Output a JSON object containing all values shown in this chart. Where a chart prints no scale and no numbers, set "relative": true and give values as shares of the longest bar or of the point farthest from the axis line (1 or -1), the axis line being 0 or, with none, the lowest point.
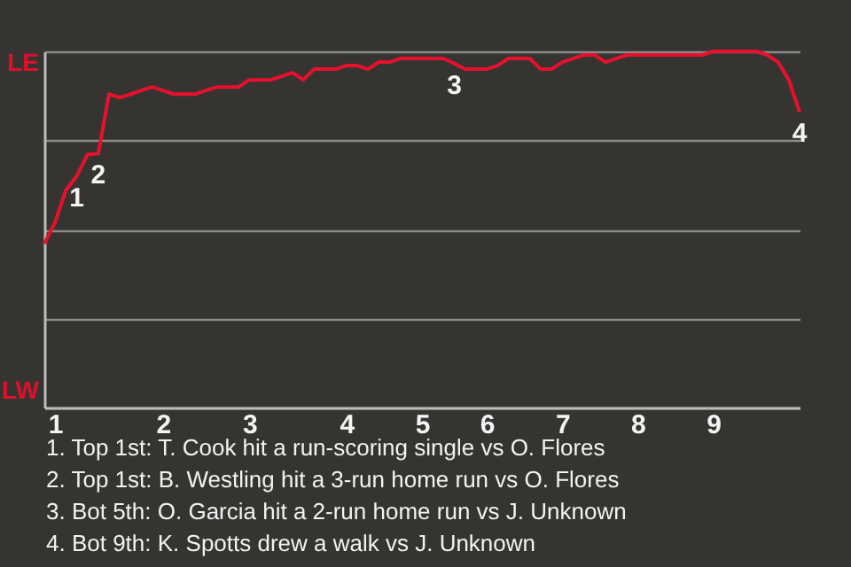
{
  "chart_data": {
    "type": "line",
    "relative": true,
    "categories": [
      null,
      "1",
      null,
      null,
      null,
      null,
      null,
      null,
      null,
      null,
      null,
      "2",
      null,
      null,
      null,
      null,
      null,
      null,
      null,
      "3",
      null,
      null,
      null,
      null,
      null,
      null,
      null,
      null,
      "4",
      null,
      null,
      null,
      null,
      null,
      null,
      "5",
      null,
      null,
      null,
      null,
      null,
      "6",
      null,
      null,
      null,
      null,
      null,
      null,
      "7",
      null,
      null,
      null,
      null,
      null,
      null,
      "8",
      null,
      null,
      null,
      null,
      null,
      null,
      "9",
      null,
      null,
      null,
      null,
      null,
      null,
      null,
      null
    ],
    "values": [
      0.46,
      0.52,
      0.61,
      0.65,
      0.71,
      0.713,
      0.88,
      0.87,
      0.88,
      0.89,
      0.9,
      0.89,
      0.88,
      0.88,
      0.88,
      0.89,
      0.9,
      0.9,
      0.9,
      0.92,
      0.92,
      0.92,
      0.93,
      0.94,
      0.92,
      0.95,
      0.95,
      0.95,
      0.96,
      0.96,
      0.95,
      0.97,
      0.97,
      0.98,
      0.98,
      0.98,
      0.98,
      0.98,
      0.966,
      0.95,
      0.95,
      0.95,
      0.96,
      0.98,
      0.98,
      0.98,
      0.95,
      0.95,
      0.97,
      0.98,
      0.99,
      0.99,
      0.97,
      0.98,
      0.99,
      0.99,
      0.99,
      0.99,
      0.99,
      0.99,
      0.99,
      0.99,
      1.0,
      1.0,
      1.0,
      1.0,
      1.0,
      0.99,
      0.97,
      0.92,
      0.83
    ],
    "color": "#e8112d",
    "grid": "y",
    "annotations": [
      {
        "text": "1",
        "y": 0.65
      },
      {
        "text": "2",
        "y": 0.713
      },
      {
        "text": "3",
        "y": 0.966
      },
      {
        "text": "4",
        "y": 0.83
      },
      "LE",
      "LW",
      "1. Top 1st: T. Cook hit a run-scoring single vs O. Flores",
      "2. Top 1st: B. Westling hit a 3-run home run vs O. Flores",
      "3. Bot 5th: O. Garcia hit a 2-run home run vs J. Unknown",
      "4. Bot 9th: K. Spotts drew a walk vs J. Unknown"
    ]
  }
}
